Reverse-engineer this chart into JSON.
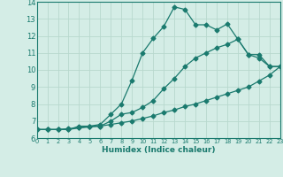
{
  "line1_x": [
    0,
    1,
    2,
    3,
    4,
    5,
    6,
    7,
    8,
    9,
    10,
    11,
    12,
    13,
    14,
    15,
    16,
    17,
    18,
    19,
    20,
    21,
    22,
    23
  ],
  "line1_y": [
    6.5,
    6.5,
    6.5,
    6.5,
    6.7,
    6.7,
    6.8,
    7.4,
    8.0,
    9.4,
    11.0,
    11.85,
    12.55,
    13.7,
    13.55,
    12.65,
    12.65,
    12.35,
    12.7,
    11.8,
    10.9,
    10.7,
    10.2,
    10.2
  ],
  "line2_x": [
    0,
    1,
    2,
    3,
    4,
    5,
    6,
    7,
    8,
    9,
    10,
    11,
    12,
    13,
    14,
    15,
    16,
    17,
    18,
    19,
    20,
    21,
    22,
    23
  ],
  "line2_y": [
    6.5,
    6.5,
    6.5,
    6.5,
    6.6,
    6.7,
    6.7,
    7.0,
    7.4,
    7.5,
    7.8,
    8.2,
    8.9,
    9.5,
    10.2,
    10.7,
    11.0,
    11.3,
    11.5,
    11.8,
    10.9,
    10.9,
    10.2,
    10.2
  ],
  "line3_x": [
    0,
    1,
    2,
    3,
    4,
    5,
    6,
    7,
    8,
    9,
    10,
    11,
    12,
    13,
    14,
    15,
    16,
    17,
    18,
    19,
    20,
    21,
    22,
    23
  ],
  "line3_y": [
    6.5,
    6.5,
    6.5,
    6.55,
    6.6,
    6.65,
    6.7,
    6.8,
    6.9,
    7.0,
    7.15,
    7.3,
    7.5,
    7.65,
    7.85,
    8.0,
    8.2,
    8.4,
    8.6,
    8.8,
    9.0,
    9.35,
    9.7,
    10.2
  ],
  "color": "#1a7a6e",
  "bg_color": "#d4ede6",
  "grid_color": "#b8d8ce",
  "xlabel": "Humidex (Indice chaleur)",
  "xlim": [
    0,
    23
  ],
  "ylim": [
    6,
    14
  ],
  "yticks": [
    6,
    7,
    8,
    9,
    10,
    11,
    12,
    13,
    14
  ],
  "xticks": [
    0,
    1,
    2,
    3,
    4,
    5,
    6,
    7,
    8,
    9,
    10,
    11,
    12,
    13,
    14,
    15,
    16,
    17,
    18,
    19,
    20,
    21,
    22,
    23
  ],
  "markersize": 2.5,
  "linewidth": 0.9
}
